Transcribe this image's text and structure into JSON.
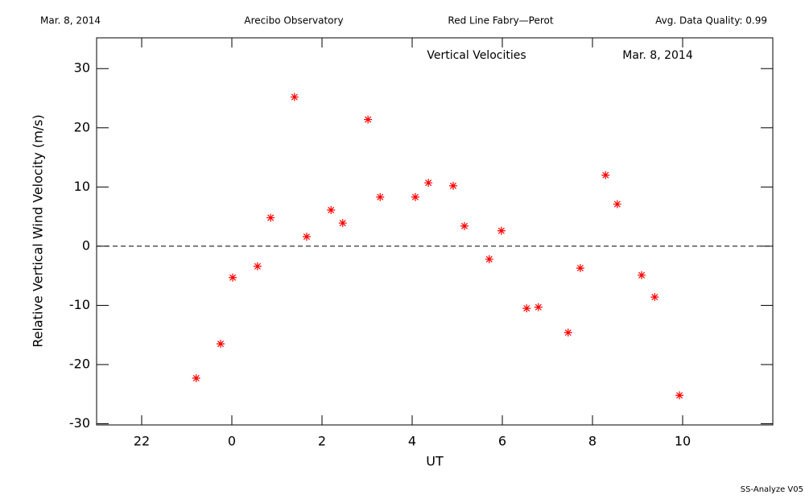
{
  "chart_data": {
    "type": "scatter",
    "header": [
      "Mar. 8, 2014",
      "Arecibo Observatory",
      "Red Line Fabry—Perot",
      "Avg. Data Quality: 0.99"
    ],
    "title": "Vertical Velocities",
    "subtitle": "Mar. 8, 2014",
    "footer": "SS-Analyze V05",
    "x_label": "UT",
    "y_label": "Relative Vertical Wind Velocity (m/s)",
    "xlim": [
      -3,
      12
    ],
    "ylim": [
      -30.2,
      35.2
    ],
    "xticks": [
      {
        "value": -2,
        "label": "22"
      },
      0,
      2,
      4,
      6,
      8,
      10
    ],
    "yticks": [
      -30,
      -20,
      -10,
      0,
      10,
      20,
      30
    ],
    "reference_line": 0,
    "color": "#ff0000",
    "x": [
      -0.79,
      -0.25,
      0.02,
      0.57,
      0.86,
      1.39,
      1.66,
      2.2,
      2.46,
      3.02,
      3.29,
      4.07,
      4.36,
      4.91,
      5.16,
      5.71,
      5.98,
      6.54,
      6.8,
      7.46,
      7.73,
      8.29,
      8.55,
      9.09,
      9.38,
      9.93
    ],
    "values": [
      -22.3,
      -16.5,
      -5.3,
      -3.4,
      4.8,
      25.2,
      1.6,
      6.1,
      3.9,
      21.4,
      8.3,
      8.3,
      10.7,
      10.2,
      3.4,
      -2.2,
      2.6,
      -10.5,
      -10.3,
      -14.6,
      -3.7,
      12.0,
      7.1,
      -4.9,
      -8.6,
      -25.2
    ]
  }
}
